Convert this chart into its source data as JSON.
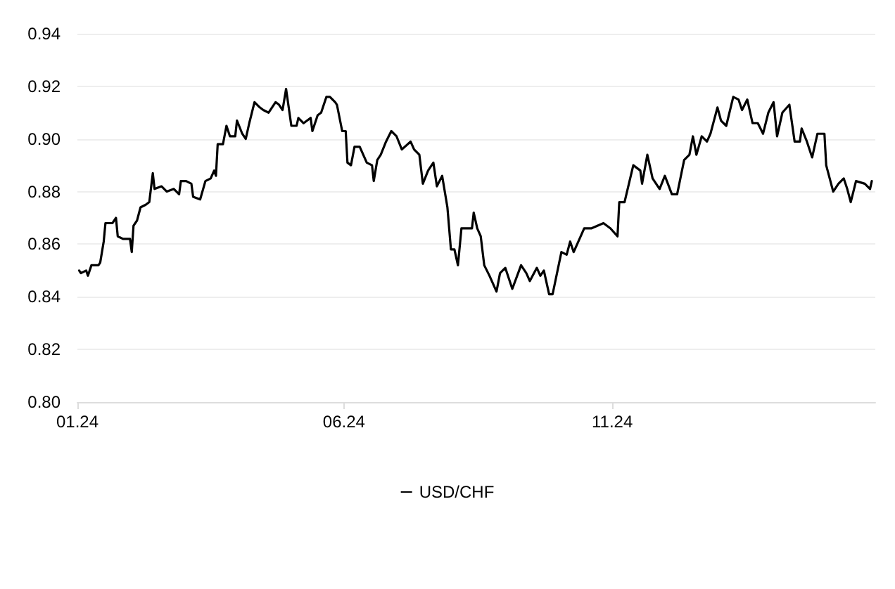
{
  "chart_data": {
    "type": "line",
    "x": [
      "2024-01-02",
      "2024-01-03",
      "2024-01-06",
      "2024-01-07",
      "2024-01-09",
      "2024-01-13",
      "2024-01-14",
      "2024-01-16",
      "2024-01-17",
      "2024-01-21",
      "2024-01-23",
      "2024-01-24",
      "2024-01-27",
      "2024-01-31",
      "2024-02-01",
      "2024-02-02",
      "2024-02-04",
      "2024-02-06",
      "2024-02-09",
      "2024-02-11",
      "2024-02-13",
      "2024-02-14",
      "2024-02-18",
      "2024-02-21",
      "2024-02-25",
      "2024-02-28",
      "2024-02-29",
      "2024-03-03",
      "2024-03-06",
      "2024-03-07",
      "2024-03-11",
      "2024-03-14",
      "2024-03-17",
      "2024-03-19",
      "2024-03-20",
      "2024-03-21",
      "2024-03-24",
      "2024-03-26",
      "2024-03-28",
      "2024-03-31",
      "2024-04-01",
      "2024-04-04",
      "2024-04-06",
      "2024-04-08",
      "2024-04-11",
      "2024-04-14",
      "2024-04-16",
      "2024-04-19",
      "2024-04-23",
      "2024-04-25",
      "2024-04-27",
      "2024-04-29",
      "2024-05-02",
      "2024-05-05",
      "2024-05-06",
      "2024-05-09",
      "2024-05-13",
      "2024-05-14",
      "2024-05-17",
      "2024-05-19",
      "2024-05-22",
      "2024-05-24",
      "2024-05-27",
      "2024-05-28",
      "2024-05-31",
      "2024-06-02",
      "2024-06-03",
      "2024-06-05",
      "2024-06-07",
      "2024-06-10",
      "2024-06-14",
      "2024-06-17",
      "2024-06-18",
      "2024-06-20",
      "2024-06-22",
      "2024-06-25",
      "2024-06-28",
      "2024-07-01",
      "2024-07-04",
      "2024-07-09",
      "2024-07-11",
      "2024-07-14",
      "2024-07-16",
      "2024-07-19",
      "2024-07-22",
      "2024-07-24",
      "2024-07-27",
      "2024-07-30",
      "2024-08-01",
      "2024-08-03",
      "2024-08-05",
      "2024-08-07",
      "2024-08-13",
      "2024-08-14",
      "2024-08-16",
      "2024-08-18",
      "2024-08-20",
      "2024-08-23",
      "2024-08-27",
      "2024-08-29",
      "2024-09-01",
      "2024-09-05",
      "2024-09-10",
      "2024-09-13",
      "2024-09-15",
      "2024-09-19",
      "2024-09-21",
      "2024-09-23",
      "2024-09-26",
      "2024-09-28",
      "2024-10-03",
      "2024-10-06",
      "2024-10-08",
      "2024-10-10",
      "2024-10-16",
      "2024-10-20",
      "2024-10-27",
      "2024-10-31",
      "2024-11-04",
      "2024-11-05",
      "2024-11-08",
      "2024-11-13",
      "2024-11-17",
      "2024-11-18",
      "2024-11-21",
      "2024-11-24",
      "2024-11-28",
      "2024-12-01",
      "2024-12-05",
      "2024-12-08",
      "2024-12-12",
      "2024-12-15",
      "2024-12-17",
      "2024-12-19",
      "2024-12-22",
      "2024-12-25",
      "2024-12-27",
      "2024-12-31",
      "2025-01-02",
      "2025-01-05",
      "2025-01-09",
      "2025-01-12",
      "2025-01-14",
      "2025-01-17",
      "2025-01-20",
      "2025-01-23",
      "2025-01-26",
      "2025-01-29",
      "2025-02-01",
      "2025-02-03",
      "2025-02-06",
      "2025-02-10",
      "2025-02-13",
      "2025-02-16",
      "2025-02-17",
      "2025-02-20",
      "2025-02-23",
      "2025-02-26",
      "2025-03-02",
      "2025-03-03",
      "2025-03-07",
      "2025-03-10",
      "2025-03-13",
      "2025-03-15",
      "2025-03-17",
      "2025-03-20",
      "2025-03-25",
      "2025-03-28",
      "2025-03-29"
    ],
    "series": [
      {
        "name": "USD/CHF",
        "color": "#000000",
        "values": [
          0.85,
          0.849,
          0.85,
          0.848,
          0.852,
          0.852,
          0.853,
          0.861,
          0.868,
          0.868,
          0.87,
          0.863,
          0.862,
          0.862,
          0.857,
          0.867,
          0.869,
          0.874,
          0.875,
          0.876,
          0.887,
          0.881,
          0.882,
          0.88,
          0.881,
          0.879,
          0.884,
          0.884,
          0.883,
          0.878,
          0.877,
          0.884,
          0.885,
          0.888,
          0.886,
          0.898,
          0.898,
          0.905,
          0.901,
          0.901,
          0.907,
          0.902,
          0.9,
          0.906,
          0.914,
          0.912,
          0.911,
          0.91,
          0.914,
          0.913,
          0.911,
          0.919,
          0.905,
          0.905,
          0.908,
          0.906,
          0.908,
          0.903,
          0.909,
          0.91,
          0.916,
          0.916,
          0.914,
          0.913,
          0.903,
          0.903,
          0.891,
          0.89,
          0.897,
          0.897,
          0.891,
          0.89,
          0.884,
          0.892,
          0.894,
          0.899,
          0.903,
          0.901,
          0.896,
          0.899,
          0.896,
          0.894,
          0.883,
          0.888,
          0.891,
          0.882,
          0.886,
          0.874,
          0.858,
          0.858,
          0.852,
          0.866,
          0.866,
          0.872,
          0.866,
          0.863,
          0.852,
          0.848,
          0.842,
          0.849,
          0.851,
          0.843,
          0.852,
          0.849,
          0.846,
          0.851,
          0.848,
          0.85,
          0.841,
          0.841,
          0.857,
          0.856,
          0.861,
          0.857,
          0.866,
          0.866,
          0.868,
          0.866,
          0.863,
          0.876,
          0.876,
          0.89,
          0.888,
          0.883,
          0.894,
          0.885,
          0.881,
          0.886,
          0.879,
          0.879,
          0.892,
          0.894,
          0.901,
          0.894,
          0.901,
          0.899,
          0.902,
          0.912,
          0.907,
          0.905,
          0.916,
          0.915,
          0.911,
          0.915,
          0.906,
          0.906,
          0.902,
          0.91,
          0.914,
          0.901,
          0.91,
          0.913,
          0.899,
          0.899,
          0.904,
          0.899,
          0.893,
          0.902,
          0.902,
          0.89,
          0.88,
          0.883,
          0.885,
          0.881,
          0.876,
          0.884,
          0.883,
          0.881,
          0.884
        ]
      }
    ],
    "xlim": [
      "2024-01-01",
      "2025-03-31"
    ],
    "xticks": [
      {
        "value": "2024-01-01",
        "label": "01.24"
      },
      {
        "value": "2024-06-01",
        "label": "06.24"
      },
      {
        "value": "2024-11-01",
        "label": "11.24"
      }
    ],
    "ylim": [
      0.8,
      0.94
    ],
    "yticks": [
      {
        "value": 0.8,
        "label": "0.80"
      },
      {
        "value": 0.82,
        "label": "0.82"
      },
      {
        "value": 0.84,
        "label": "0.84"
      },
      {
        "value": 0.86,
        "label": "0.86"
      },
      {
        "value": 0.88,
        "label": "0.88"
      },
      {
        "value": 0.9,
        "label": "0.90"
      },
      {
        "value": 0.92,
        "label": "0.92"
      },
      {
        "value": 0.94,
        "label": "0.94"
      }
    ],
    "grid": "y",
    "legend": "bottom",
    "marker": "none",
    "line_style": "solid"
  }
}
